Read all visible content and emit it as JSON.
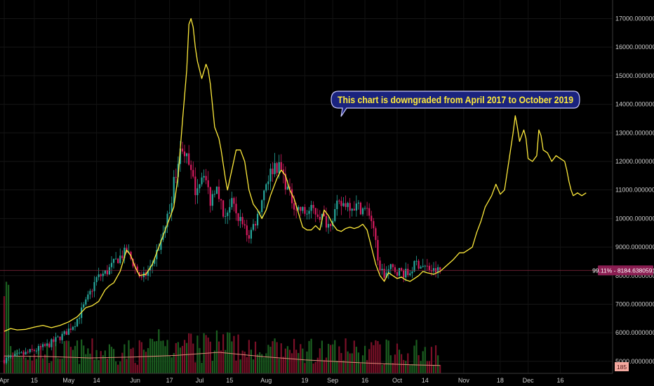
{
  "colors": {
    "background": "#000000",
    "up_candle": "#26a69a",
    "down_candle": "#d81b60",
    "forecast_line": "#ffeb3b",
    "volume_up": "#1b5e20",
    "volume_down": "#7b1028",
    "volume_ma": "#e08a7a",
    "price_line": "#8b2840",
    "price_badge": "#8b1e52",
    "callout_fill": "#1a237e",
    "callout_text": "#ffeb3b"
  },
  "annotation": {
    "callout_text": "This chart is downgraded from April 2017 to October 2019"
  },
  "price_badge": {
    "text": "99.11% - 8184.63805914",
    "value": 8184.63805914
  },
  "volume_badge": {
    "text": "185",
    "value": 185
  },
  "chart_data": {
    "type": "candlestick",
    "title": "",
    "ylim": [
      4580,
      17650
    ],
    "y_ticks": [
      {
        "value": 5000,
        "label": "5000.00000000"
      },
      {
        "value": 6000,
        "label": "6000.00000000"
      },
      {
        "value": 7000,
        "label": "7000.00000000"
      },
      {
        "value": 8000,
        "label": "8000.00000000"
      },
      {
        "value": 9000,
        "label": "9000.00000000"
      },
      {
        "value": 10000,
        "label": "10000.00000000"
      },
      {
        "value": 11000,
        "label": "11000.00000000"
      },
      {
        "value": 12000,
        "label": "12000.00000000"
      },
      {
        "value": 13000,
        "label": "13000.00000000"
      },
      {
        "value": 14000,
        "label": "14000.00000000"
      },
      {
        "value": 15000,
        "label": "15000.00000000"
      },
      {
        "value": 16000,
        "label": "16000.00000000"
      },
      {
        "value": 17000,
        "label": "17000.00000000"
      }
    ],
    "x_ticks": [
      {
        "day": 0,
        "label": "Apr"
      },
      {
        "day": 14,
        "label": "15"
      },
      {
        "day": 30,
        "label": "May"
      },
      {
        "day": 43,
        "label": "14"
      },
      {
        "day": 61,
        "label": "Jun"
      },
      {
        "day": 77,
        "label": "17"
      },
      {
        "day": 91,
        "label": "Jul"
      },
      {
        "day": 105,
        "label": "15"
      },
      {
        "day": 122,
        "label": "Aug"
      },
      {
        "day": 140,
        "label": "19"
      },
      {
        "day": 153,
        "label": "Sep"
      },
      {
        "day": 168,
        "label": "16"
      },
      {
        "day": 183,
        "label": "Oct"
      },
      {
        "day": 196,
        "label": "14"
      },
      {
        "day": 214,
        "label": "Nov"
      },
      {
        "day": 231,
        "label": "18"
      },
      {
        "day": 244,
        "label": "Dec"
      },
      {
        "day": 259,
        "label": "16"
      }
    ],
    "candles_last_day": 203,
    "series": [
      {
        "type": "candlestick",
        "anchors": [
          [
            0,
            5050
          ],
          [
            10,
            5280
          ],
          [
            20,
            5550
          ],
          [
            28,
            5950
          ],
          [
            33,
            6350
          ],
          [
            38,
            7050
          ],
          [
            43,
            7900
          ],
          [
            48,
            8150
          ],
          [
            53,
            8600
          ],
          [
            57,
            8850
          ],
          [
            60,
            8450
          ],
          [
            64,
            7850
          ],
          [
            68,
            8250
          ],
          [
            73,
            9200
          ],
          [
            77,
            10300
          ],
          [
            80,
            11700
          ],
          [
            83,
            12600
          ],
          [
            86,
            11800
          ],
          [
            89,
            11000
          ],
          [
            93,
            11700
          ],
          [
            96,
            10600
          ],
          [
            99,
            11300
          ],
          [
            102,
            10100
          ],
          [
            106,
            10500
          ],
          [
            110,
            9900
          ],
          [
            114,
            9400
          ],
          [
            118,
            10100
          ],
          [
            122,
            11300
          ],
          [
            126,
            11900
          ],
          [
            129,
            11700
          ],
          [
            133,
            10800
          ],
          [
            136,
            10400
          ],
          [
            140,
            10200
          ],
          [
            144,
            10300
          ],
          [
            148,
            10050
          ],
          [
            151,
            9800
          ],
          [
            155,
            10400
          ],
          [
            159,
            10550
          ],
          [
            163,
            10450
          ],
          [
            167,
            10350
          ],
          [
            170,
            10200
          ],
          [
            172,
            9700
          ],
          [
            174,
            8450
          ],
          [
            177,
            8000
          ],
          [
            180,
            8250
          ],
          [
            184,
            8150
          ],
          [
            188,
            8050
          ],
          [
            192,
            8450
          ],
          [
            196,
            8300
          ],
          [
            200,
            8150
          ],
          [
            203,
            8190
          ]
        ]
      },
      {
        "type": "line",
        "points": [
          [
            0,
            6050
          ],
          [
            3,
            6150
          ],
          [
            6,
            6100
          ],
          [
            10,
            6120
          ],
          [
            14,
            6200
          ],
          [
            18,
            6260
          ],
          [
            22,
            6180
          ],
          [
            26,
            6260
          ],
          [
            30,
            6380
          ],
          [
            34,
            6560
          ],
          [
            38,
            6880
          ],
          [
            41,
            6950
          ],
          [
            44,
            7100
          ],
          [
            47,
            7500
          ],
          [
            49,
            7650
          ],
          [
            51,
            7750
          ],
          [
            54,
            8150
          ],
          [
            57,
            8900
          ],
          [
            59,
            8700
          ],
          [
            61,
            8300
          ],
          [
            63,
            8000
          ],
          [
            66,
            8050
          ],
          [
            69,
            8400
          ],
          [
            72,
            9000
          ],
          [
            75,
            9600
          ],
          [
            77,
            10000
          ],
          [
            79,
            10400
          ],
          [
            81,
            11500
          ],
          [
            83,
            13400
          ],
          [
            85,
            15200
          ],
          [
            86,
            16800
          ],
          [
            87,
            17000
          ],
          [
            88,
            16700
          ],
          [
            89,
            16000
          ],
          [
            90,
            15500
          ],
          [
            92,
            14900
          ],
          [
            94,
            15400
          ],
          [
            95,
            15200
          ],
          [
            96,
            14700
          ],
          [
            98,
            13200
          ],
          [
            100,
            12800
          ],
          [
            101,
            12400
          ],
          [
            103,
            11400
          ],
          [
            104,
            11000
          ],
          [
            106,
            11700
          ],
          [
            108,
            12400
          ],
          [
            110,
            12400
          ],
          [
            112,
            12000
          ],
          [
            114,
            11000
          ],
          [
            116,
            10500
          ],
          [
            118,
            10300
          ],
          [
            120,
            10000
          ],
          [
            122,
            10300
          ],
          [
            124,
            10800
          ],
          [
            127,
            11400
          ],
          [
            129,
            11700
          ],
          [
            131,
            11500
          ],
          [
            133,
            11000
          ],
          [
            135,
            10700
          ],
          [
            137,
            10200
          ],
          [
            139,
            9700
          ],
          [
            141,
            9600
          ],
          [
            143,
            9600
          ],
          [
            145,
            9750
          ],
          [
            147,
            9600
          ],
          [
            149,
            10300
          ],
          [
            151,
            10100
          ],
          [
            153,
            9800
          ],
          [
            155,
            9600
          ],
          [
            157,
            9550
          ],
          [
            159,
            9650
          ],
          [
            161,
            9700
          ],
          [
            163,
            9650
          ],
          [
            165,
            9700
          ],
          [
            167,
            9800
          ],
          [
            169,
            9600
          ],
          [
            171,
            9000
          ],
          [
            173,
            8400
          ],
          [
            175,
            8000
          ],
          [
            177,
            7800
          ],
          [
            179,
            8100
          ],
          [
            181,
            8000
          ],
          [
            183,
            7900
          ],
          [
            185,
            7950
          ],
          [
            187,
            7850
          ],
          [
            189,
            7800
          ],
          [
            191,
            7900
          ],
          [
            193,
            8000
          ],
          [
            195,
            8150
          ],
          [
            197,
            8100
          ],
          [
            200,
            8050
          ],
          [
            203,
            8150
          ],
          [
            206,
            8350
          ],
          [
            209,
            8550
          ],
          [
            212,
            8800
          ],
          [
            214,
            8800
          ],
          [
            216,
            8900
          ],
          [
            218,
            9000
          ],
          [
            220,
            9500
          ],
          [
            222,
            9900
          ],
          [
            224,
            10400
          ],
          [
            227,
            10800
          ],
          [
            229,
            11200
          ],
          [
            231,
            10850
          ],
          [
            233,
            11000
          ],
          [
            235,
            12000
          ],
          [
            237,
            13000
          ],
          [
            238,
            13600
          ],
          [
            239,
            13200
          ],
          [
            240,
            12700
          ],
          [
            242,
            13100
          ],
          [
            243,
            12800
          ],
          [
            244,
            12100
          ],
          [
            246,
            12000
          ],
          [
            248,
            12200
          ],
          [
            249,
            13100
          ],
          [
            250,
            12900
          ],
          [
            251,
            12400
          ],
          [
            253,
            12300
          ],
          [
            255,
            12000
          ],
          [
            257,
            12200
          ],
          [
            259,
            12100
          ],
          [
            261,
            12000
          ],
          [
            262,
            11700
          ],
          [
            263,
            11300
          ],
          [
            264,
            11000
          ],
          [
            265,
            10800
          ],
          [
            267,
            10900
          ],
          [
            269,
            10800
          ],
          [
            271,
            10900
          ]
        ]
      },
      {
        "type": "volume_ma",
        "points": [
          [
            0,
            0.62
          ],
          [
            20,
            0.6
          ],
          [
            40,
            0.55
          ],
          [
            60,
            0.58
          ],
          [
            80,
            0.64
          ],
          [
            100,
            0.75
          ],
          [
            120,
            0.6
          ],
          [
            140,
            0.48
          ],
          [
            160,
            0.4
          ],
          [
            180,
            0.33
          ],
          [
            192,
            0.3
          ],
          [
            203,
            0.28
          ]
        ]
      }
    ]
  }
}
